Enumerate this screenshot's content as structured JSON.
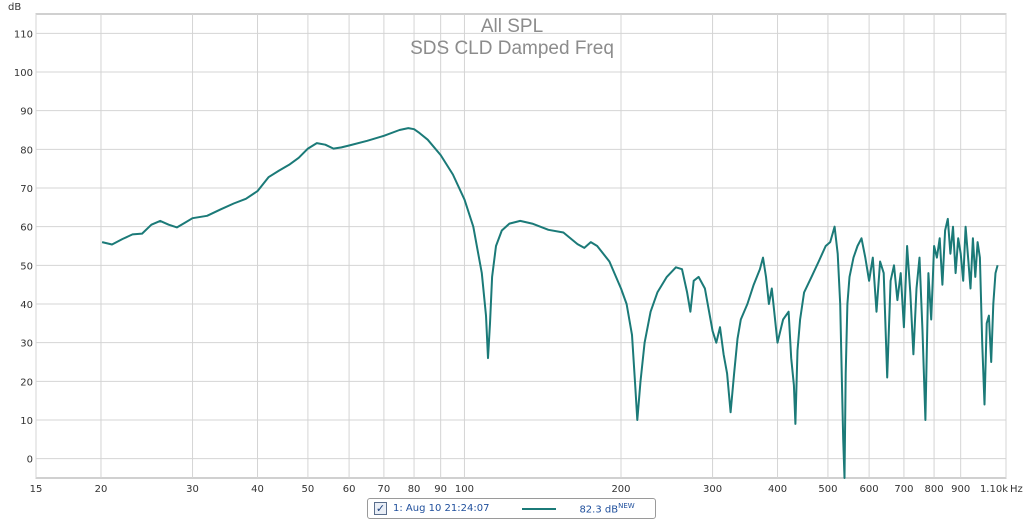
{
  "chart_data": {
    "type": "line",
    "title": "All SPL",
    "subtitle": "SDS CLD Damped Freq",
    "y_unit": "dB",
    "x_unit": "Hz",
    "x_scale": "log",
    "xlim": [
      15,
      1100
    ],
    "ylim": [
      -5,
      115
    ],
    "grid": true,
    "x_ticks": [
      {
        "value": 15,
        "label": "15"
      },
      {
        "value": 20,
        "label": "20"
      },
      {
        "value": 30,
        "label": "30"
      },
      {
        "value": 40,
        "label": "40"
      },
      {
        "value": 50,
        "label": "50"
      },
      {
        "value": 60,
        "label": "60"
      },
      {
        "value": 70,
        "label": "70"
      },
      {
        "value": 80,
        "label": "80"
      },
      {
        "value": 90,
        "label": "90"
      },
      {
        "value": 100,
        "label": "100"
      },
      {
        "value": 200,
        "label": "200"
      },
      {
        "value": 300,
        "label": "300"
      },
      {
        "value": 400,
        "label": "400"
      },
      {
        "value": 500,
        "label": "500"
      },
      {
        "value": 600,
        "label": "600"
      },
      {
        "value": 700,
        "label": "700"
      },
      {
        "value": 800,
        "label": "800"
      },
      {
        "value": 900,
        "label": "900"
      },
      {
        "value": 1100,
        "label": "1.10k"
      }
    ],
    "y_ticks": [
      {
        "value": 110,
        "label": "110"
      },
      {
        "value": 100,
        "label": "100"
      },
      {
        "value": 90,
        "label": "90"
      },
      {
        "value": 80,
        "label": "80"
      },
      {
        "value": 70,
        "label": "70"
      },
      {
        "value": 60,
        "label": "60"
      },
      {
        "value": 50,
        "label": "50"
      },
      {
        "value": 40,
        "label": "40"
      },
      {
        "value": 30,
        "label": "30"
      },
      {
        "value": 20,
        "label": "20"
      },
      {
        "value": 10,
        "label": "10"
      },
      {
        "value": 0,
        "label": "0"
      }
    ],
    "series": [
      {
        "name": "1: Aug 10 21:24:07",
        "color": "#1b7a78",
        "level": "82.3 dB",
        "level_tag": "NEW",
        "x": [
          20.1,
          21,
          22,
          23,
          24,
          25,
          26,
          27,
          28,
          29,
          30,
          32,
          34,
          36,
          38,
          40,
          42,
          44,
          46,
          48,
          50,
          52,
          54,
          56,
          58,
          60,
          65,
          70,
          75,
          78,
          80,
          82,
          85,
          90,
          95,
          100,
          104,
          108,
          110,
          111,
          112,
          113,
          115,
          118,
          122,
          128,
          135,
          145,
          155,
          165,
          170,
          175,
          180,
          190,
          200,
          205,
          210,
          213,
          215,
          218,
          222,
          228,
          235,
          245,
          255,
          262,
          268,
          272,
          276,
          282,
          290,
          300,
          305,
          310,
          315,
          320,
          325,
          330,
          335,
          340,
          350,
          360,
          370,
          375,
          380,
          385,
          390,
          400,
          410,
          420,
          425,
          430,
          433,
          437,
          442,
          450,
          465,
          480,
          495,
          505,
          515,
          522,
          528,
          532,
          535,
          538,
          541,
          545,
          550,
          560,
          570,
          580,
          590,
          600,
          610,
          620,
          630,
          640,
          650,
          660,
          670,
          680,
          690,
          700,
          710,
          720,
          730,
          740,
          750,
          760,
          770,
          780,
          790,
          800,
          810,
          820,
          830,
          840,
          850,
          860,
          870,
          880,
          890,
          900,
          910,
          920,
          930,
          940,
          950,
          960,
          970,
          980,
          990,
          1000,
          1010,
          1020,
          1030,
          1040,
          1050,
          1060
        ],
        "y": [
          56,
          55.4,
          56.8,
          58,
          58.2,
          60.5,
          61.5,
          60.5,
          59.8,
          61,
          62.2,
          62.8,
          64.5,
          66,
          67.2,
          69.2,
          72.8,
          74.5,
          76,
          77.8,
          80.2,
          81.6,
          81.2,
          80.2,
          80.5,
          81,
          82.2,
          83.5,
          85,
          85.5,
          85.2,
          84.2,
          82.5,
          78.5,
          73.5,
          67,
          60,
          48,
          37,
          26,
          35,
          47,
          55,
          59,
          60.8,
          61.5,
          60.8,
          59.2,
          58.5,
          55.5,
          54.5,
          56,
          55,
          51,
          44,
          40,
          32,
          19,
          10,
          20,
          30,
          38,
          43,
          47,
          49.5,
          49,
          43,
          38,
          46,
          47,
          44,
          33,
          30,
          34,
          27,
          22,
          12,
          22,
          31,
          36,
          40,
          45,
          49,
          52,
          47,
          40,
          44,
          30,
          36,
          38,
          26,
          19,
          9,
          28,
          36,
          43,
          47,
          51,
          55,
          56,
          60,
          53,
          40,
          20,
          5,
          -5,
          22,
          40,
          47,
          52,
          55,
          57,
          52,
          46,
          52,
          38,
          51,
          48,
          21,
          46,
          50,
          41,
          48,
          34,
          55,
          43,
          27,
          44,
          52,
          33,
          10,
          48,
          36,
          55,
          52,
          57,
          45,
          59,
          62,
          53,
          60,
          48,
          57,
          53,
          46,
          60,
          52,
          44,
          57,
          47,
          56,
          52,
          30,
          14,
          35,
          37,
          25,
          40,
          48,
          50
        ]
      }
    ]
  }
}
